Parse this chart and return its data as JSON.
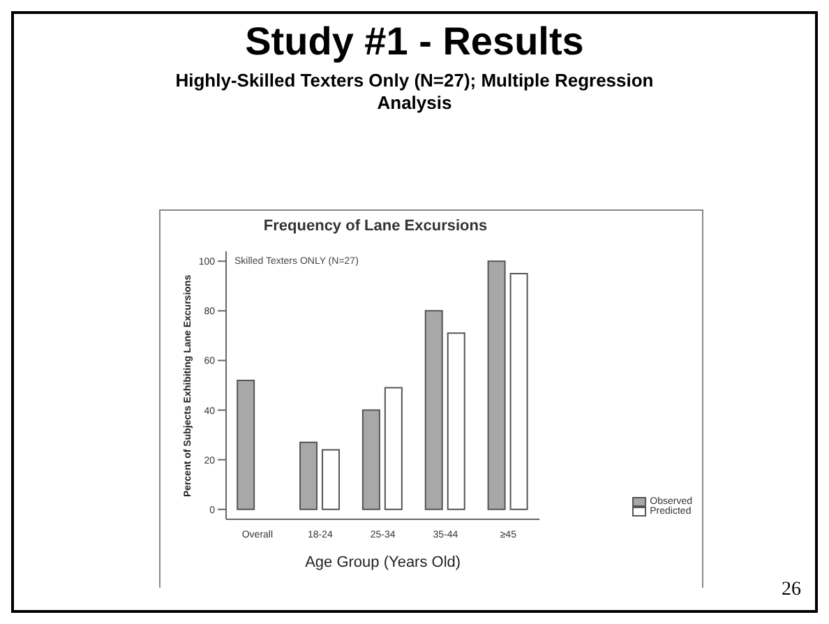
{
  "chart_data": {
    "type": "bar",
    "title": "Study #1 - Results",
    "subtitle": "Highly-Skilled Texters Only (N=27); Multiple Regression Analysis",
    "xlabel": "Age Group (Years Old)",
    "ylabel": "Percent of Subjects Exhibiting Lane Excursions",
    "categories": [
      "Overall",
      "18-24",
      "25-34",
      "35-44",
      "≥45"
    ],
    "series": [
      {
        "name": "Observed",
        "color": "#a8a8a8",
        "values": [
          52,
          27,
          40,
          80,
          100
        ]
      },
      {
        "name": "Predicted",
        "color": "#ffffff",
        "values": [
          null,
          24,
          49,
          71,
          95
        ]
      }
    ],
    "ylim": [
      -4,
      104
    ],
    "yticks": [
      0,
      20,
      40,
      60,
      80,
      100
    ],
    "grid": false,
    "legend": "bottom right",
    "annotations": [
      "Frequency of Lane Excursions",
      "Skilled Texters ONLY (N=27)",
      "26"
    ]
  }
}
